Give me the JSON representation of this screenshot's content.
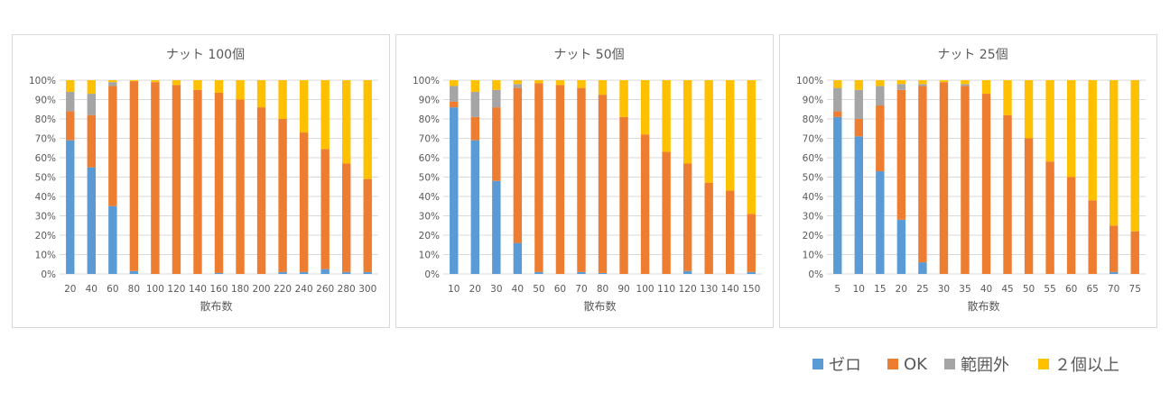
{
  "legend": [
    {
      "name": "ゼロ",
      "color": "#5b9bd5"
    },
    {
      "name": "OK",
      "color": "#ed7d31"
    },
    {
      "name": "範囲外",
      "color": "#a5a5a5"
    },
    {
      "name": "２個以上",
      "color": "#ffc000"
    }
  ],
  "chart_data": [
    {
      "type": "bar",
      "stacked": "percent",
      "title": "ナット 100個",
      "xlabel": "散布数",
      "ylabel": "",
      "ylim": [
        0,
        100
      ],
      "yticks": [
        "0%",
        "10%",
        "20%",
        "30%",
        "40%",
        "50%",
        "60%",
        "70%",
        "80%",
        "90%",
        "100%"
      ],
      "categories": [
        "20",
        "40",
        "60",
        "80",
        "100",
        "120",
        "140",
        "160",
        "180",
        "200",
        "220",
        "240",
        "260",
        "280",
        "300"
      ],
      "series": [
        {
          "name": "ゼロ",
          "values": [
            69,
            55,
            35,
            1.5,
            0,
            0,
            0,
            0.5,
            0,
            0,
            1,
            1,
            2.5,
            1,
            1
          ]
        },
        {
          "name": "OK",
          "values": [
            15,
            27,
            62,
            98,
            99,
            97.5,
            95,
            93,
            90,
            86,
            79,
            72,
            62,
            56,
            48
          ]
        },
        {
          "name": "範囲外",
          "values": [
            10,
            11,
            2,
            0,
            0,
            0,
            0,
            0,
            0,
            0,
            0,
            0,
            0,
            0,
            0
          ]
        },
        {
          "name": "２個以上",
          "values": [
            6,
            7,
            1,
            0.5,
            1,
            2.5,
            5,
            6.5,
            10,
            14,
            20,
            27,
            35.5,
            43,
            51
          ]
        }
      ]
    },
    {
      "type": "bar",
      "stacked": "percent",
      "title": "ナット 50個",
      "xlabel": "散布数",
      "ylabel": "",
      "ylim": [
        0,
        100
      ],
      "yticks": [
        "0%",
        "10%",
        "20%",
        "30%",
        "40%",
        "50%",
        "60%",
        "70%",
        "80%",
        "90%",
        "100%"
      ],
      "categories": [
        "10",
        "20",
        "30",
        "40",
        "50",
        "60",
        "70",
        "80",
        "90",
        "100",
        "110",
        "120",
        "130",
        "140",
        "150"
      ],
      "series": [
        {
          "name": "ゼロ",
          "values": [
            86,
            69,
            48,
            16,
            1,
            0,
            1,
            0.5,
            0,
            0,
            0,
            1.5,
            0,
            0,
            1
          ]
        },
        {
          "name": "OK",
          "values": [
            3,
            12,
            38,
            80,
            97.5,
            97.5,
            95,
            92,
            81,
            72,
            63,
            55.5,
            47,
            43,
            30
          ]
        },
        {
          "name": "範囲外",
          "values": [
            8,
            13,
            9,
            2,
            0,
            0,
            0,
            0,
            0,
            0,
            0,
            0,
            0,
            0,
            0
          ]
        },
        {
          "name": "２個以上",
          "values": [
            3,
            6,
            5,
            2,
            1.5,
            2.5,
            4,
            7.5,
            19,
            28,
            37,
            43,
            53,
            57,
            69
          ]
        }
      ]
    },
    {
      "type": "bar",
      "stacked": "percent",
      "title": "ナット 25個",
      "xlabel": "散布数",
      "ylabel": "",
      "ylim": [
        0,
        100
      ],
      "yticks": [
        "0%",
        "10%",
        "20%",
        "30%",
        "40%",
        "50%",
        "60%",
        "70%",
        "80%",
        "90%",
        "100%"
      ],
      "categories": [
        "5",
        "10",
        "15",
        "20",
        "25",
        "30",
        "35",
        "40",
        "45",
        "50",
        "55",
        "60",
        "65",
        "70",
        "75"
      ],
      "series": [
        {
          "name": "ゼロ",
          "values": [
            81,
            71,
            53,
            28,
            6,
            0,
            0,
            0,
            0,
            0,
            0,
            0,
            0,
            1,
            0
          ]
        },
        {
          "name": "OK",
          "values": [
            3,
            9,
            34,
            67,
            91,
            99,
            97,
            93,
            82,
            70,
            58,
            50,
            38,
            24,
            22
          ]
        },
        {
          "name": "範囲外",
          "values": [
            12,
            15,
            10,
            3,
            1,
            0,
            1,
            0,
            0,
            0,
            0,
            0,
            0,
            0,
            0
          ]
        },
        {
          "name": "２個以上",
          "values": [
            4,
            5,
            3,
            2,
            2,
            1,
            2,
            7,
            18,
            30,
            42,
            50,
            62,
            75,
            78
          ]
        }
      ]
    }
  ]
}
